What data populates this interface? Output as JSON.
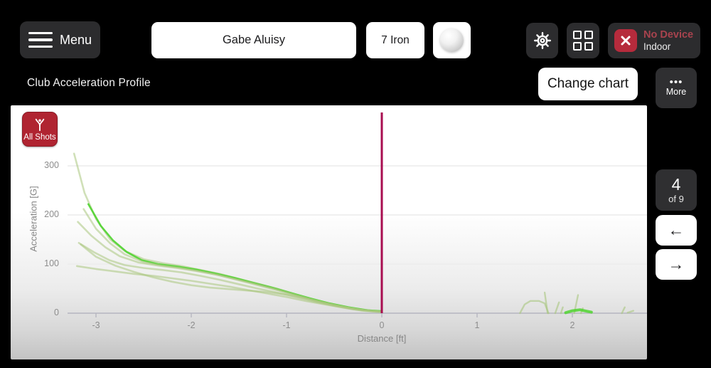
{
  "top_bar": {
    "menu_label": "Menu",
    "player_name": "Gabe Aluisy",
    "club": "7 Iron",
    "device_status": "No Device",
    "device_mode": "Indoor"
  },
  "header": {
    "title": "Club Acceleration Profile",
    "change_chart_label": "Change chart",
    "more_icon": "•••",
    "more_label": "More"
  },
  "legend": {
    "all_shots_label": "All Shots"
  },
  "pagination": {
    "current": "4",
    "of_label": "of 9",
    "prev_icon": "←",
    "next_icon": "→"
  },
  "colors": {
    "shot_line": "#a9c77e",
    "shot_line_bright": "#4fd42f",
    "impact_line": "#a80d50",
    "grid_line": "#ececec",
    "axis_line": "#b6b6c0",
    "badge_red": "#b02431",
    "device_red": "#a8434e"
  },
  "chart_data": {
    "type": "line",
    "title": "Club Acceleration Profile",
    "xlabel": "Distance [ft]",
    "ylabel": "Acceleration [G]",
    "xlim": [
      -3.9,
      2.78
    ],
    "ylim": [
      0,
      420
    ],
    "xticks": [
      -3,
      -2,
      -1,
      0,
      1,
      2
    ],
    "yticks": [
      0,
      100,
      200,
      300
    ],
    "grid": "horizontal",
    "legend_position": "none",
    "impact_line_x": 0,
    "series": [
      {
        "name": "shot-1",
        "color": "#a9c77e",
        "opacity": 0.55,
        "width": 2.6,
        "points": [
          [
            -3.23,
            325
          ],
          [
            -3.12,
            245
          ],
          [
            -3.0,
            192
          ],
          [
            -2.85,
            150
          ],
          [
            -2.7,
            127
          ],
          [
            -2.5,
            110
          ],
          [
            -2.3,
            102
          ],
          [
            -2.1,
            96
          ],
          [
            -1.9,
            88
          ],
          [
            -1.7,
            80
          ],
          [
            -1.5,
            70
          ],
          [
            -1.3,
            60
          ],
          [
            -1.1,
            50
          ],
          [
            -0.9,
            38
          ],
          [
            -0.7,
            27
          ],
          [
            -0.5,
            18
          ],
          [
            -0.3,
            10
          ],
          [
            -0.1,
            5
          ],
          [
            0,
            4
          ]
        ]
      },
      {
        "name": "shot-2",
        "color": "#4fd42f",
        "opacity": 0.9,
        "width": 2.6,
        "points": [
          [
            -3.08,
            222
          ],
          [
            -2.95,
            178
          ],
          [
            -2.82,
            148
          ],
          [
            -2.68,
            125
          ],
          [
            -2.52,
            108
          ],
          [
            -2.35,
            100
          ],
          [
            -2.15,
            95
          ],
          [
            -1.95,
            89
          ],
          [
            -1.75,
            81
          ],
          [
            -1.55,
            72
          ],
          [
            -1.35,
            62
          ],
          [
            -1.15,
            52
          ],
          [
            -0.95,
            41
          ],
          [
            -0.75,
            30
          ],
          [
            -0.55,
            20
          ],
          [
            -0.35,
            12
          ],
          [
            -0.15,
            6
          ],
          [
            0,
            4
          ]
        ]
      },
      {
        "name": "shot-3",
        "color": "#a9c77e",
        "opacity": 0.55,
        "width": 2.6,
        "points": [
          [
            -3.13,
            212
          ],
          [
            -3.0,
            172
          ],
          [
            -2.85,
            142
          ],
          [
            -2.7,
            120
          ],
          [
            -2.5,
            104
          ],
          [
            -2.3,
            97
          ],
          [
            -2.1,
            92
          ],
          [
            -1.9,
            85
          ],
          [
            -1.7,
            77
          ],
          [
            -1.5,
            67
          ],
          [
            -1.3,
            57
          ],
          [
            -1.1,
            47
          ],
          [
            -0.9,
            36
          ],
          [
            -0.7,
            25
          ],
          [
            -0.5,
            16
          ],
          [
            -0.3,
            9
          ],
          [
            -0.1,
            4
          ],
          [
            0,
            3
          ]
        ]
      },
      {
        "name": "shot-4",
        "color": "#a9c77e",
        "opacity": 0.55,
        "width": 2.6,
        "points": [
          [
            -3.19,
            186
          ],
          [
            -3.05,
            158
          ],
          [
            -2.9,
            134
          ],
          [
            -2.75,
            116
          ],
          [
            -2.55,
            103
          ],
          [
            -2.35,
            97
          ],
          [
            -2.15,
            92
          ],
          [
            -1.95,
            86
          ],
          [
            -1.75,
            79
          ],
          [
            -1.55,
            70
          ],
          [
            -1.35,
            61
          ],
          [
            -1.15,
            51
          ],
          [
            -0.95,
            40
          ],
          [
            -0.75,
            29
          ],
          [
            -0.55,
            19
          ],
          [
            -0.35,
            11
          ],
          [
            -0.15,
            5
          ],
          [
            0,
            3
          ]
        ]
      },
      {
        "name": "shot-5",
        "color": "#a9c77e",
        "opacity": 0.55,
        "width": 2.6,
        "points": [
          [
            -3.18,
            143
          ],
          [
            -3.02,
            124
          ],
          [
            -2.86,
            108
          ],
          [
            -2.7,
            98
          ],
          [
            -2.5,
            92
          ],
          [
            -2.3,
            88
          ],
          [
            -2.1,
            83
          ],
          [
            -1.9,
            76
          ],
          [
            -1.7,
            68
          ],
          [
            -1.5,
            59
          ],
          [
            -1.3,
            50
          ],
          [
            -1.1,
            42
          ],
          [
            -0.9,
            33
          ],
          [
            -0.7,
            23
          ],
          [
            -0.5,
            15
          ],
          [
            -0.3,
            8
          ],
          [
            0,
            3
          ]
        ]
      },
      {
        "name": "shot-6",
        "color": "#a9c77e",
        "opacity": 0.55,
        "width": 2.6,
        "points": [
          [
            -3.16,
            140
          ],
          [
            -3.0,
            115
          ],
          [
            -2.8,
            97
          ],
          [
            -2.6,
            84
          ],
          [
            -2.4,
            73
          ],
          [
            -2.2,
            64
          ],
          [
            -2.0,
            57
          ],
          [
            -1.8,
            52
          ],
          [
            -1.6,
            49
          ],
          [
            -1.4,
            46
          ],
          [
            -1.2,
            43
          ],
          [
            -1.0,
            38
          ],
          [
            -0.8,
            30
          ],
          [
            -0.6,
            21
          ],
          [
            -0.4,
            13
          ],
          [
            -0.2,
            6
          ],
          [
            0,
            3
          ]
        ]
      },
      {
        "name": "shot-7",
        "color": "#a9c77e",
        "opacity": 0.55,
        "width": 2.6,
        "points": [
          [
            -3.2,
            96
          ],
          [
            -3.0,
            90
          ],
          [
            -2.8,
            85
          ],
          [
            -2.6,
            80
          ],
          [
            -2.4,
            76
          ],
          [
            -2.2,
            71
          ],
          [
            -2.0,
            66
          ],
          [
            -1.8,
            60
          ],
          [
            -1.6,
            54
          ],
          [
            -1.4,
            47
          ],
          [
            -1.2,
            40
          ],
          [
            -1.0,
            33
          ],
          [
            -0.8,
            25
          ],
          [
            -0.6,
            18
          ],
          [
            -0.4,
            11
          ],
          [
            -0.2,
            5
          ],
          [
            0,
            2
          ]
        ]
      },
      {
        "name": "post-impact-bump",
        "color": "#a9c77e",
        "opacity": 0.6,
        "width": 2.4,
        "points": [
          [
            1.45,
            0
          ],
          [
            1.5,
            18
          ],
          [
            1.56,
            25
          ],
          [
            1.65,
            25
          ],
          [
            1.71,
            20
          ],
          [
            1.75,
            0
          ]
        ]
      },
      {
        "name": "post-impact-spike-1",
        "color": "#a9c77e",
        "opacity": 0.6,
        "width": 2.4,
        "points": [
          [
            1.74,
            0
          ],
          [
            1.71,
            42
          ]
        ]
      },
      {
        "name": "post-impact-spike-2",
        "color": "#a9c77e",
        "opacity": 0.6,
        "width": 2.4,
        "points": [
          [
            1.82,
            0
          ],
          [
            1.86,
            22
          ]
        ]
      },
      {
        "name": "post-impact-spike-3",
        "color": "#a9c77e",
        "opacity": 0.6,
        "width": 2.4,
        "points": [
          [
            1.88,
            0
          ],
          [
            1.9,
            12
          ]
        ]
      },
      {
        "name": "post-impact-spike-4",
        "color": "#a9c77e",
        "opacity": 0.6,
        "width": 2.4,
        "points": [
          [
            2.02,
            0
          ],
          [
            2.06,
            37
          ]
        ]
      },
      {
        "name": "post-impact-spike-5",
        "color": "#a9c77e",
        "opacity": 0.6,
        "width": 2.4,
        "points": [
          [
            2.09,
            0
          ],
          [
            2.11,
            10
          ]
        ]
      },
      {
        "name": "post-impact-bright-arc",
        "color": "#4fd42f",
        "opacity": 0.85,
        "width": 4,
        "points": [
          [
            1.93,
            1
          ],
          [
            2.0,
            5
          ],
          [
            2.08,
            7
          ],
          [
            2.15,
            4
          ],
          [
            2.2,
            2
          ]
        ]
      },
      {
        "name": "post-impact-far-1",
        "color": "#a9c77e",
        "opacity": 0.6,
        "width": 2.4,
        "points": [
          [
            2.52,
            0
          ],
          [
            2.55,
            12
          ]
        ]
      },
      {
        "name": "post-impact-far-2",
        "color": "#a9c77e",
        "opacity": 0.6,
        "width": 2.4,
        "points": [
          [
            2.58,
            1
          ],
          [
            2.64,
            5
          ]
        ]
      }
    ]
  }
}
